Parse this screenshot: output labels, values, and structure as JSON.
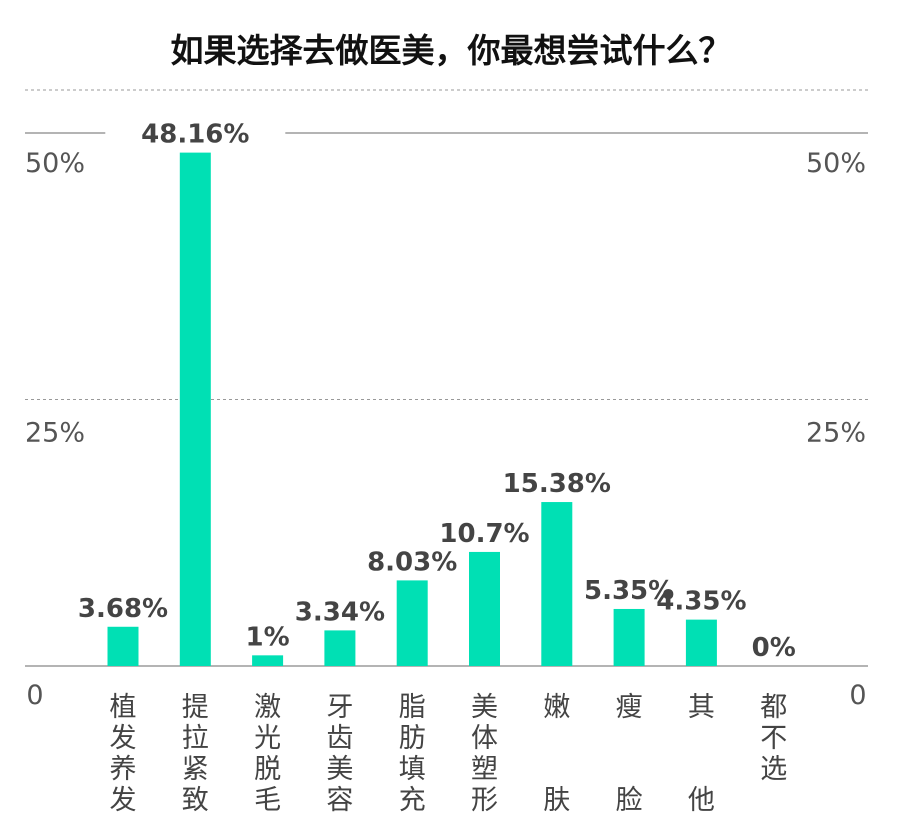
{
  "chart_data": {
    "type": "bar",
    "title": "如果选择去做医美，你最想尝试什么？",
    "xlabel": "",
    "ylabel": "",
    "ylim": [
      0,
      50
    ],
    "yticks": [
      {
        "value": 0,
        "label": "0"
      },
      {
        "value": 25,
        "label": "25%"
      },
      {
        "value": 50,
        "label": "50%"
      }
    ],
    "categories": [
      "植发养发",
      "提拉紧致",
      "激光脱毛",
      "牙齿美容",
      "脂肪填充",
      "美体塑形",
      "嫩肤",
      "瘦脸",
      "其他",
      "都不选"
    ],
    "values": [
      3.68,
      48.16,
      1,
      3.34,
      8.03,
      10.7,
      15.38,
      5.35,
      4.35,
      0
    ],
    "data_labels": [
      "3.68%",
      "48.16%",
      "1%",
      "3.34%",
      "8.03%",
      "10.7%",
      "15.38%",
      "5.35%",
      "4.35%",
      "0%"
    ],
    "grid": true,
    "legend": "none",
    "colors": {
      "bar": "#00e0b4",
      "gridline": "#999999",
      "axis": "#888888",
      "text": "#444444"
    }
  }
}
